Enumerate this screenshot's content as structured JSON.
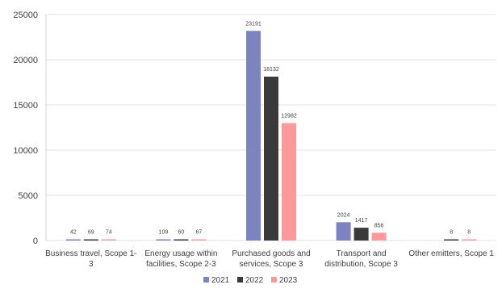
{
  "chart_data": {
    "type": "bar",
    "title": "",
    "xlabel": "",
    "ylabel": "",
    "ylim": [
      0,
      25000
    ],
    "yticks": [
      0,
      5000,
      10000,
      15000,
      20000,
      25000
    ],
    "grid": true,
    "legend_position": "bottom",
    "categories": [
      [
        "Business travel, Scope 1-",
        "3"
      ],
      [
        "Energy usage within",
        "facilities, Scope 2-3"
      ],
      [
        "Purchased goods and",
        "services, Scope 3"
      ],
      [
        "Transport and",
        "distribution, Scope 3"
      ],
      [
        "Other emitters, Scope 1"
      ]
    ],
    "series": [
      {
        "name": "2021",
        "color": "#7b84c1",
        "values": [
          42,
          109,
          23191,
          2024,
          null
        ]
      },
      {
        "name": "2022",
        "color": "#3a3a3a",
        "values": [
          69,
          60,
          18132,
          1417,
          8
        ]
      },
      {
        "name": "2023",
        "color": "#ff9999",
        "values": [
          74,
          67,
          12982,
          856,
          8
        ]
      }
    ]
  }
}
